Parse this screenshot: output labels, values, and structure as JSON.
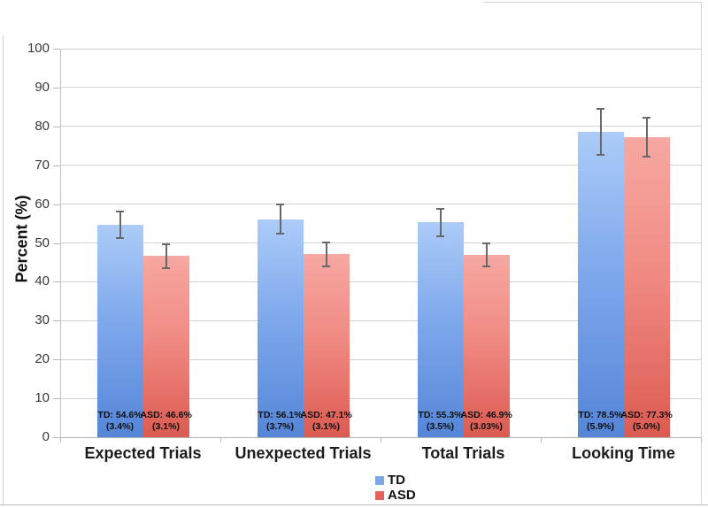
{
  "chart_data": {
    "type": "bar",
    "title": "",
    "ylabel": "Percent (%)",
    "ylim": [
      0,
      100
    ],
    "yticks": [
      0,
      10,
      20,
      30,
      40,
      50,
      60,
      70,
      80,
      90,
      100
    ],
    "grid": "horizontal",
    "legend_position": "bottom-center",
    "categories": [
      "Expected Trials",
      "Unexpected Trials",
      "Total Trials",
      "Looking Time"
    ],
    "series": [
      {
        "name": "TD",
        "values": [
          54.6,
          56.1,
          55.3,
          78.5
        ],
        "errors": [
          3.4,
          3.7,
          3.5,
          5.9
        ],
        "bar_labels": [
          [
            "TD: 54.6%",
            "(3.4%)"
          ],
          [
            "TD: 56.1%",
            "(3.7%)"
          ],
          [
            "TD: 55.3%",
            "(3.5%)"
          ],
          [
            "TD: 78.5%",
            "(5.9%)"
          ]
        ],
        "color_top": "#ACCBF8",
        "color_mid": "#7FA9EC",
        "color_bottom": "#5585D8",
        "legend_color": "#7FA7E8"
      },
      {
        "name": "ASD",
        "values": [
          46.6,
          47.1,
          46.9,
          77.3
        ],
        "errors": [
          3.1,
          3.1,
          3.03,
          5.0
        ],
        "bar_labels": [
          [
            "ASD: 46.6%",
            "(3.1%)"
          ],
          [
            "ASD: 47.1%",
            "(3.1%)"
          ],
          [
            "ASD: 46.9%",
            "(3.03%)"
          ],
          [
            "ASD: 77.3%",
            "(5.0%)"
          ]
        ],
        "color_top": "#F7A8A2",
        "color_mid": "#F08B84",
        "color_bottom": "#DC5B52",
        "legend_color": "#E2625A"
      }
    ]
  }
}
